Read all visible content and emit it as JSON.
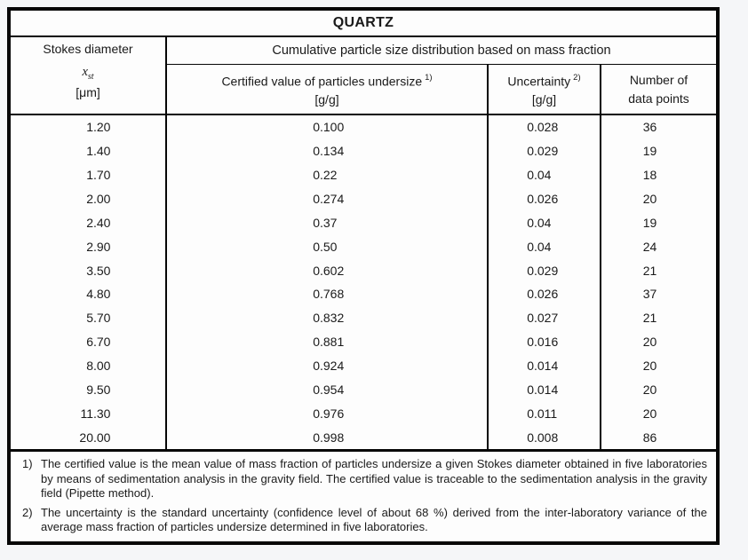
{
  "title": "QUARTZ",
  "header": {
    "stokes": {
      "line1": "Stokes diameter",
      "symbol": "x",
      "symbol_sub": "st",
      "unit": "[μm]"
    },
    "cumulative": "Cumulative particle size distribution based on mass fraction",
    "certified": {
      "label": "Certified value of particles undersize",
      "sup": "1)",
      "unit": "[g/g]"
    },
    "uncertainty": {
      "label": "Uncertainty",
      "sup": "2)",
      "unit": "[g/g]"
    },
    "points": {
      "line1": "Number of",
      "line2": "data points"
    }
  },
  "table": {
    "columns": [
      "Stokes diameter x_st [μm]",
      "Certified value of particles undersize [g/g]",
      "Uncertainty [g/g]",
      "Number of data points"
    ],
    "rows": [
      [
        "1.20",
        "0.100",
        "0.028",
        "36"
      ],
      [
        "1.40",
        "0.134",
        "0.029",
        "19"
      ],
      [
        "1.70",
        "0.22",
        "0.04",
        "18"
      ],
      [
        "2.00",
        "0.274",
        "0.026",
        "20"
      ],
      [
        "2.40",
        "0.37",
        "0.04",
        "19"
      ],
      [
        "2.90",
        "0.50",
        "0.04",
        "24"
      ],
      [
        "3.50",
        "0.602",
        "0.029",
        "21"
      ],
      [
        "4.80",
        "0.768",
        "0.026",
        "37"
      ],
      [
        "5.70",
        "0.832",
        "0.027",
        "21"
      ],
      [
        "6.70",
        "0.881",
        "0.016",
        "20"
      ],
      [
        "8.00",
        "0.924",
        "0.014",
        "20"
      ],
      [
        "9.50",
        "0.954",
        "0.014",
        "20"
      ],
      [
        "11.30",
        "0.976",
        "0.011",
        "20"
      ],
      [
        "20.00",
        "0.998",
        "0.008",
        "86"
      ]
    ]
  },
  "footnotes": [
    {
      "num": "1)",
      "text": "The certified value is the mean value of mass fraction of particles undersize a given Stokes diameter obtained in five laboratories by means of sedimentation analysis in the gravity field. The certified value is traceable to the sedimentation analysis in the gravity field (Pipette method)."
    },
    {
      "num": "2)",
      "text": "The uncertainty is the standard uncertainty (confidence level of about 68 %) derived from the inter-laboratory variance of the average mass fraction of particles undersize determined in five laboratories."
    }
  ],
  "colors": {
    "border": "#060606",
    "text": "#1a1a1a",
    "page_background": "#f5f6f8",
    "cell_background": "#fdfdfd"
  }
}
